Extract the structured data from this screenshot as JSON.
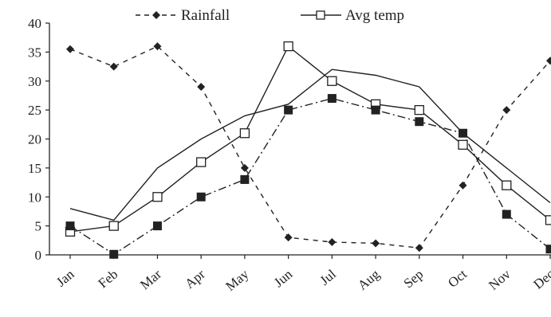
{
  "chart_data": {
    "type": "line",
    "categories": [
      "Jan",
      "Feb",
      "Mar",
      "Apr",
      "May",
      "Jun",
      "Jul",
      "Aug",
      "Sep",
      "Oct",
      "Nov",
      "Dec"
    ],
    "ylim": [
      0,
      40
    ],
    "yticks": [
      "0",
      "5",
      "10",
      "15",
      "20",
      "25",
      "30",
      "35",
      "40"
    ],
    "grid": false,
    "legend_position": "top",
    "legend": [
      {
        "label": "Rainfall",
        "style": "dashed",
        "marker": "diamond-filled"
      },
      {
        "label": "Avg temp",
        "style": "solid",
        "marker": "square-open"
      }
    ],
    "series": [
      {
        "name": "Rainfall",
        "style": "dashed-sparse",
        "marker": "diamond-filled",
        "values": [
          35.5,
          32.5,
          36,
          29,
          15,
          3,
          2.2,
          2,
          1.2,
          12,
          25,
          33.5
        ]
      },
      {
        "name": "Avg temp",
        "style": "solid",
        "marker": "square-open",
        "values": [
          4,
          5,
          10,
          16,
          21,
          36,
          30,
          26,
          25,
          19,
          12,
          6
        ]
      },
      {
        "style": "solid",
        "marker": "none",
        "values": [
          8,
          6,
          15,
          20,
          24,
          26,
          32,
          31,
          29,
          21,
          15,
          9
        ]
      },
      {
        "style": "dash-dot",
        "marker": "square-filled",
        "values": [
          5,
          0.1,
          5,
          10,
          13,
          25,
          27,
          25,
          23,
          21,
          7,
          1
        ]
      }
    ],
    "colors": {
      "line": "#222222",
      "background": "#ffffff"
    }
  }
}
